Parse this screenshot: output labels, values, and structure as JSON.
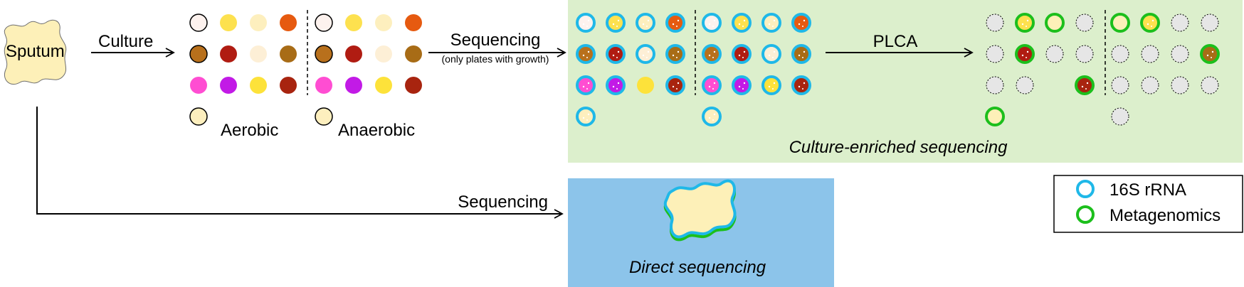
{
  "labels": {
    "sputum": "Sputum",
    "culture": "Culture",
    "aerobic": "Aerobic",
    "anaerobic": "Anaerobic",
    "sequencing_top": "Sequencing",
    "sequencing_note": "(only plates with growth)",
    "plca": "PLCA",
    "sequencing_bottom": "Sequencing",
    "culture_enriched": "Culture-enriched sequencing",
    "direct": "Direct sequencing"
  },
  "legend": {
    "rrna": "16S rRNA",
    "metagenomics": "Metagenomics"
  },
  "colors": {
    "panel_green": "#dcefcc",
    "panel_blue": "#8cc4ea",
    "sputum_fill": "#fdf0b8",
    "ring_16s": "#1fb8e8",
    "ring_meta": "#1cbf1c",
    "dashed_plate": "#e6e6e6"
  },
  "plates": {
    "aerobic": [
      [
        "#fdf2ee",
        "#fde14f",
        "#fdefbe",
        "#e65a10"
      ],
      [
        "#b8701c",
        "#b01c12",
        "#fdefd6",
        "#a86c16"
      ],
      [
        "#ff4dd2",
        "#c21ae6",
        "#fde23a",
        "#a8240f"
      ],
      [
        "#fdefbe"
      ]
    ],
    "anaerobic": [
      [
        "#fdf2ee",
        "#fde14f",
        "#fdefbe",
        "#e65a10"
      ],
      [
        "#b8701c",
        "#b01c12",
        "#fdefd6",
        "#a86c16"
      ],
      [
        "#ff4dd2",
        "#c21ae6",
        "#fde23a",
        "#a8240f"
      ],
      [
        "#fdefbe"
      ]
    ],
    "aerobic_outlined": [
      [
        0,
        0
      ],
      [
        1,
        0
      ],
      [
        3,
        0
      ]
    ],
    "anaerobic_outlined": [
      [
        0,
        0
      ],
      [
        1,
        0
      ],
      [
        3,
        0
      ]
    ],
    "enriched_aerobic_no_ring": [
      [
        2,
        2
      ]
    ],
    "plca_aerobic": [
      [
        "empty",
        "#fde14f",
        "ring",
        "empty"
      ],
      [
        "empty",
        "#b01c12",
        "empty",
        "empty"
      ],
      [
        "empty",
        "empty",
        null,
        "#a8240f"
      ],
      [
        "ring"
      ]
    ],
    "plca_anaerobic": [
      [
        "ring",
        "#fde14f",
        "empty",
        "empty"
      ],
      [
        "empty",
        "empty",
        "empty",
        "#a86c16"
      ],
      [
        "empty",
        "empty",
        "empty",
        "empty"
      ],
      [
        "empty"
      ]
    ]
  }
}
